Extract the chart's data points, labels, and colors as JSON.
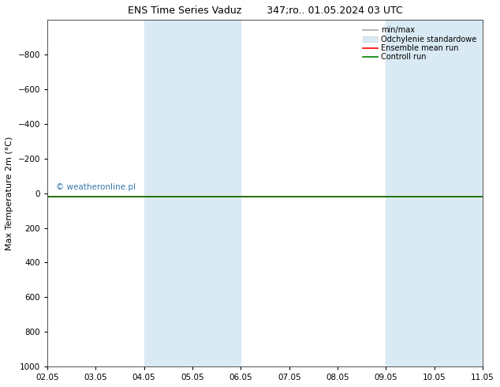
{
  "title_left": "ENS Time Series Vaduz",
  "title_right": "347;ro.. 01.05.2024 03 UTC",
  "ylabel": "Max Temperature 2m (°C)",
  "ylim_top": -1000,
  "ylim_bottom": 1000,
  "yticks": [
    -800,
    -600,
    -400,
    -200,
    0,
    200,
    400,
    600,
    800,
    1000
  ],
  "bg_color": "#ffffff",
  "plot_bg_color": "#ffffff",
  "shaded_bands": [
    {
      "xmin": 2.0,
      "xmax": 4.0,
      "color": "#daeaf5"
    },
    {
      "xmin": 7.0,
      "xmax": 9.0,
      "color": "#daeaf5"
    }
  ],
  "control_run_y": 20,
  "control_run_color": "#008000",
  "ensemble_mean_color": "#ff0000",
  "minmax_color": "#aaaaaa",
  "std_fill_color": "#daeaf5",
  "watermark": "© weatheronline.pl",
  "watermark_color": "#3377aa",
  "legend_items": [
    {
      "label": "min/max",
      "color": "#aaaaaa",
      "lw": 1.2
    },
    {
      "label": "Odchylenie standardowe",
      "color": "#daeaf5",
      "lw": 8
    },
    {
      "label": "Ensemble mean run",
      "color": "#ff0000",
      "lw": 1.2
    },
    {
      "label": "Controll run",
      "color": "#008000",
      "lw": 1.2
    }
  ],
  "x_tick_positions": [
    0,
    1,
    2,
    3,
    4,
    5,
    6,
    7,
    8,
    9
  ],
  "x_tick_labels": [
    "02.05",
    "03.05",
    "04.05",
    "05.05",
    "06.05",
    "07.05",
    "08.05",
    "09.05",
    "10.05",
    "11.05"
  ],
  "title_fontsize": 9,
  "tick_fontsize": 7.5,
  "ylabel_fontsize": 8,
  "legend_fontsize": 7
}
